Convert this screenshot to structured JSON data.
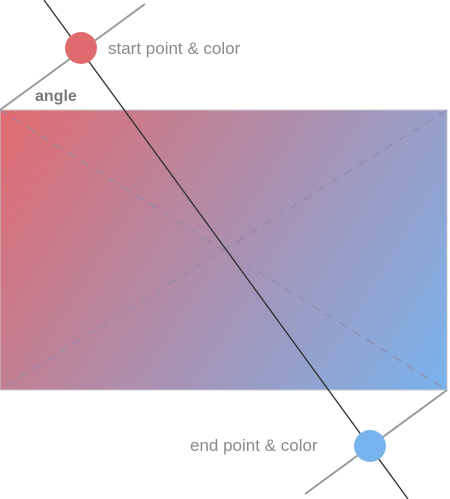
{
  "labels": {
    "start": "start point & color",
    "angle": "angle",
    "end": "end point & color"
  },
  "colors": {
    "start": "#e06b6f",
    "end": "#79b3ed",
    "guide_line": "#9a9a9a",
    "axis_line": "#2f2f2f",
    "diagonal_dash": "#8f8aa8",
    "label_text": "#8a8a8a",
    "angle_text": "#777777",
    "rect_border": "#c8c8d0"
  }
}
